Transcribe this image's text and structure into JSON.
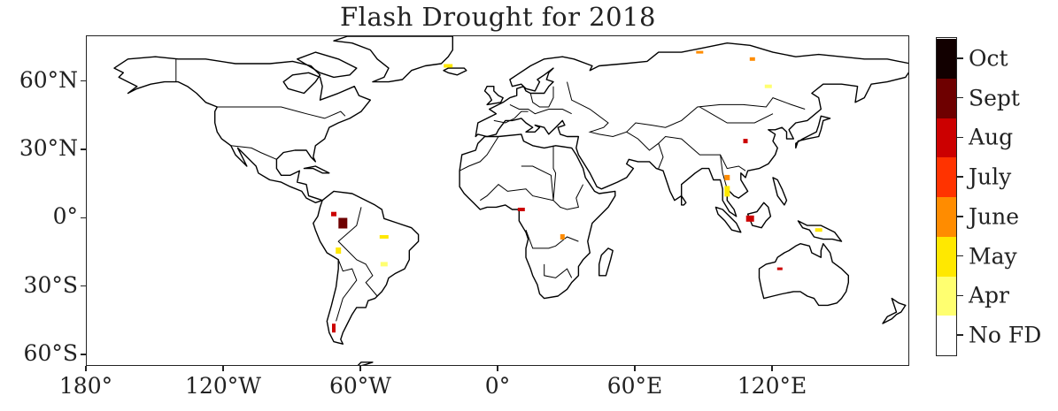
{
  "title": "Flash Drought for 2018",
  "map": {
    "projection": "plate-carree",
    "lon_range": [
      -180,
      180
    ],
    "lat_range": [
      -65,
      80
    ],
    "coastline_color": "#000000",
    "x_ticks": [
      {
        "lon": -180,
        "label": "180°"
      },
      {
        "lon": -120,
        "label": "120°W"
      },
      {
        "lon": -60,
        "label": "60°W"
      },
      {
        "lon": 0,
        "label": "0°"
      },
      {
        "lon": 60,
        "label": "60°E"
      },
      {
        "lon": 120,
        "label": "120°E"
      }
    ],
    "y_ticks": [
      {
        "lat": 60,
        "label": "60°N"
      },
      {
        "lat": 30,
        "label": "30°N"
      },
      {
        "lat": 0,
        "label": "0°"
      },
      {
        "lat": -30,
        "label": "30°S"
      },
      {
        "lat": -60,
        "label": "60°S"
      }
    ]
  },
  "colorbar": {
    "categories": [
      {
        "label": "No FD",
        "color": "#ffffff"
      },
      {
        "label": "Apr",
        "color": "#ffff70"
      },
      {
        "label": "May",
        "color": "#ffe800"
      },
      {
        "label": "June",
        "color": "#ff8c00"
      },
      {
        "label": "July",
        "color": "#ff3300"
      },
      {
        "label": "Aug",
        "color": "#cc0000"
      },
      {
        "label": "Sept",
        "color": "#6e0000"
      },
      {
        "label": "Oct",
        "color": "#120000"
      }
    ]
  },
  "chart_data": {
    "type": "heatmap",
    "title": "Flash Drought for 2018",
    "xlim": [
      -180,
      180
    ],
    "ylim": [
      -65,
      80
    ],
    "legend": "colorbar-right",
    "regions": [
      {
        "name": "",
        "lon": -68,
        "lat": -2,
        "month": "Sept"
      },
      {
        "name": "",
        "lon": -72,
        "lat": 2,
        "month": "Aug"
      },
      {
        "name": "",
        "lon": -70,
        "lat": -14,
        "month": "May"
      },
      {
        "name": "",
        "lon": -50,
        "lat": -20,
        "month": "Apr"
      },
      {
        "name": "",
        "lon": -50,
        "lat": -8,
        "month": "May"
      },
      {
        "name": "",
        "lon": -72,
        "lat": -48,
        "month": "Aug"
      },
      {
        "name": "",
        "lon": 110,
        "lat": 0,
        "month": "Aug"
      },
      {
        "name": "",
        "lon": 100,
        "lat": 18,
        "month": "June"
      },
      {
        "name": "",
        "lon": 100,
        "lat": 12,
        "month": "May"
      },
      {
        "name": "",
        "lon": 108,
        "lat": 34,
        "month": "Aug"
      },
      {
        "name": "",
        "lon": 118,
        "lat": 58,
        "month": "Apr"
      },
      {
        "name": "",
        "lon": 111,
        "lat": 70,
        "month": "June"
      },
      {
        "name": "",
        "lon": 88,
        "lat": 73,
        "month": "June"
      },
      {
        "name": "",
        "lon": -22,
        "lat": 67,
        "month": "May"
      },
      {
        "name": "",
        "lon": 10,
        "lat": 4,
        "month": "Aug"
      },
      {
        "name": "",
        "lon": 28,
        "lat": -8,
        "month": "June"
      },
      {
        "name": "",
        "lon": 140,
        "lat": -5,
        "month": "May"
      },
      {
        "name": "",
        "lon": 123,
        "lat": -22,
        "month": "Aug"
      }
    ]
  }
}
